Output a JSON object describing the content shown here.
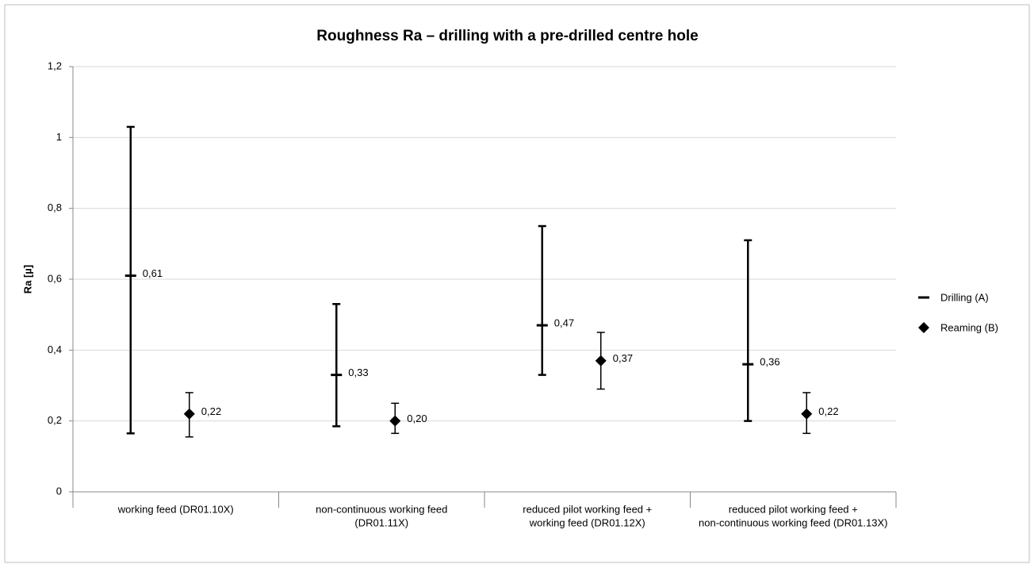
{
  "chart_data": {
    "type": "errorbar",
    "title": "Roughness Ra – drilling with a pre-drilled centre hole",
    "y_label": "Ra [µ]",
    "categories": [
      [
        "working feed (DR01.10X)"
      ],
      [
        "non-continuous working feed",
        "(DR01.11X)"
      ],
      [
        "reduced pilot working feed +",
        "working feed (DR01.12X)"
      ],
      [
        "reduced pilot working feed  +",
        "non-continuous working feed (DR01.13X)"
      ]
    ],
    "series": [
      {
        "name": "Drilling (A)",
        "color": "#000000",
        "marker": "dash",
        "values": [
          0.61,
          0.33,
          0.47,
          0.36
        ],
        "value_labels": [
          "0,61",
          "0,33",
          "0,47",
          "0,36"
        ],
        "low": [
          0.165,
          0.185,
          0.33,
          0.2
        ],
        "high": [
          1.03,
          0.53,
          0.75,
          0.71
        ]
      },
      {
        "name": "Reaming (B)",
        "color": "#000000",
        "marker": "diamond",
        "values": [
          0.22,
          0.2,
          0.37,
          0.22
        ],
        "value_labels": [
          "0,22",
          "0,20",
          "0,37",
          "0,22"
        ],
        "low": [
          0.155,
          0.165,
          0.29,
          0.165
        ],
        "high": [
          0.28,
          0.25,
          0.45,
          0.28
        ]
      }
    ],
    "ylim": [
      0,
      1.2
    ],
    "yticks": [
      0,
      {
        "value": 0.2,
        "label": "0,2"
      },
      {
        "value": 0.4,
        "label": "0,4"
      },
      {
        "value": 0.6,
        "label": "0,6"
      },
      {
        "value": 0.8,
        "label": "0,8"
      },
      1,
      {
        "value": 1.2,
        "label": "1,2"
      }
    ],
    "grid": true,
    "legend": "right"
  }
}
